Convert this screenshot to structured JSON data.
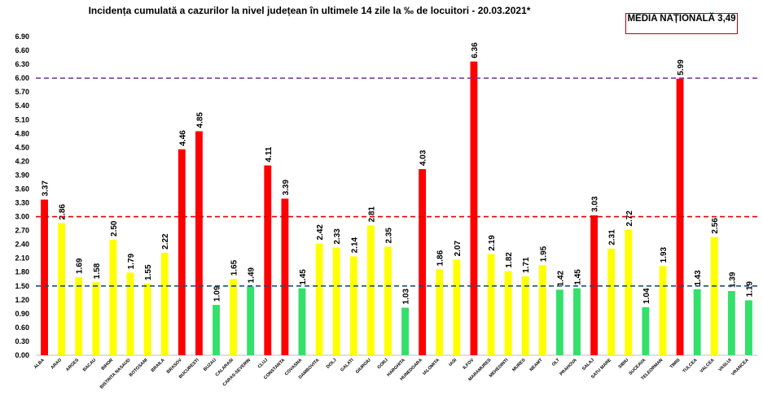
{
  "chart_data": {
    "type": "bar",
    "title": "Incidența cumulată a cazurilor la nivel județean în ultimele 14 zile la ‰ de locuitori - 20.03.2021*",
    "xlabel": "",
    "ylabel": "",
    "ylim": [
      0,
      6.9
    ],
    "yticks": [
      "0.00",
      "0.30",
      "0.60",
      "0.90",
      "1.20",
      "1.50",
      "1.80",
      "2.10",
      "2.40",
      "2.70",
      "3.00",
      "3.30",
      "3.60",
      "3.90",
      "4.20",
      "4.50",
      "4.80",
      "5.10",
      "5.40",
      "5.70",
      "6.00",
      "6.30",
      "6.60",
      "6.90"
    ],
    "grid": false,
    "categories": [
      "ALBA",
      "ARAD",
      "ARGES",
      "BACAU",
      "BIHOR",
      "BISTRITA NASAUD",
      "BOTOSANI",
      "BRAILA",
      "BRASOV",
      "BUCURESTI",
      "BUZAU",
      "CALARASI",
      "CARAS-SEVERIN",
      "CLUJ",
      "CONSTANTA",
      "COVASNA",
      "DAMBOVITA",
      "DOLJ",
      "GALATI",
      "GIURGIU",
      "GORJ",
      "HARGHITA",
      "HUNEDOARA",
      "IALOMITA",
      "IASI",
      "ILFOV",
      "MARAMURES",
      "MEHEDINTI",
      "MURES",
      "NEAMT",
      "OLT",
      "PRAHOVA",
      "SALAJ",
      "SATU MARE",
      "SIBIU",
      "SUCEAVA",
      "TELEORMAN",
      "TIMIS",
      "TULCEA",
      "VALCEA",
      "VASLUI",
      "VRANCEA"
    ],
    "values": [
      3.37,
      2.86,
      1.69,
      1.58,
      2.5,
      1.79,
      1.55,
      2.22,
      4.46,
      4.85,
      1.09,
      1.65,
      1.49,
      4.11,
      3.39,
      1.45,
      2.42,
      2.33,
      2.14,
      2.81,
      2.35,
      1.03,
      4.03,
      1.86,
      2.07,
      6.36,
      2.19,
      1.82,
      1.71,
      1.95,
      1.42,
      1.45,
      3.03,
      2.31,
      2.72,
      1.04,
      1.93,
      5.99,
      1.43,
      2.56,
      1.39,
      1.19
    ],
    "value_labels": [
      "3.37",
      "2.86",
      "1.69",
      "1.58",
      "2.50",
      "1.79",
      "1.55",
      "2.22",
      "4.46",
      "4.85",
      "1.09",
      "1.65",
      "1.49",
      "4.11",
      "3.39",
      "1.45",
      "2.42",
      "2.33",
      "2.14",
      "2.81",
      "2.35",
      "1.03",
      "4.03",
      "1.86",
      "2.07",
      "6.36",
      "2.19",
      "1.82",
      "1.71",
      "1.95",
      "1.42",
      "1.45",
      "3.03",
      "2.31",
      "2.72",
      "1.04",
      "1.93",
      "5.99",
      "1.43",
      "2.56",
      "1.39",
      "1.19"
    ],
    "thresholds": [
      {
        "value": 1.5,
        "color": "#1f4e79"
      },
      {
        "value": 3.0,
        "color": "#e00000"
      },
      {
        "value": 6.0,
        "color": "#7030a0"
      }
    ],
    "colors": {
      "low": "#33e06a",
      "mid": "#ffff00",
      "high": "#ff0000"
    },
    "annotation": "MEDIA NAȚIONALĂ 3,49"
  }
}
